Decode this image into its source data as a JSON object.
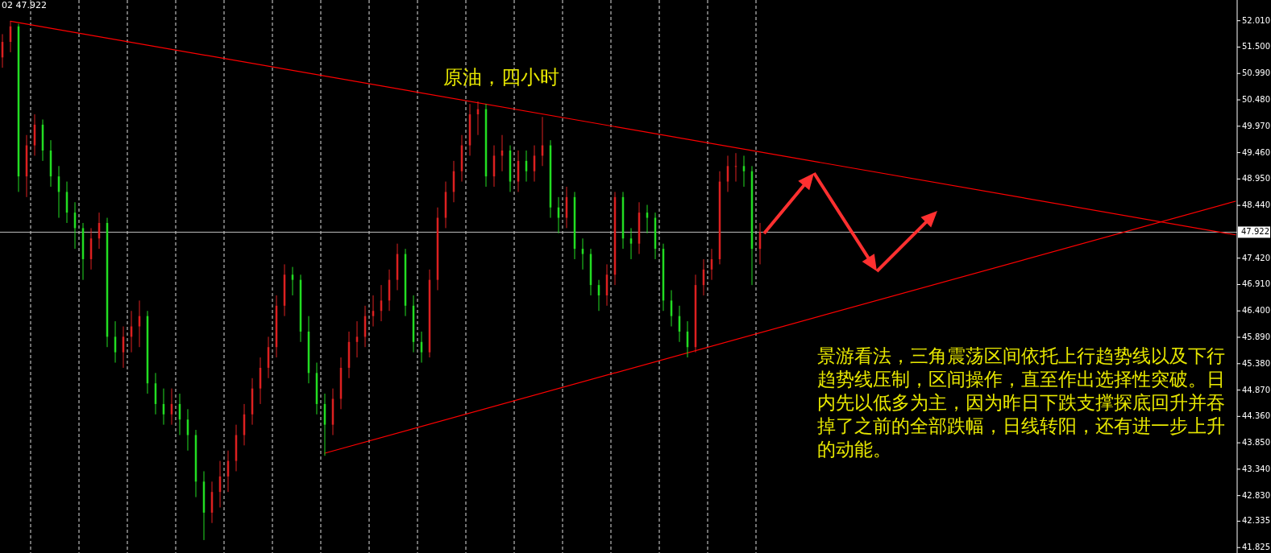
{
  "chart_data": {
    "type": "candlestick",
    "title": "原油，四小时",
    "annotations": [
      "02 47.922",
      "景游看法，三角震荡区间依托上行趋势线以及下行趋势线压制，区间操作，直至作出选择性突破。日内先以低多为主，因为昨日下跌支撑探底回升并吞掉了之前的全部跌幅，日线转阳，还有进一步上升的动能。"
    ],
    "categories": [
      null,
      null,
      null,
      null,
      null,
      null,
      null,
      null,
      null,
      null,
      null,
      null,
      null,
      null,
      null,
      null,
      null,
      null,
      null,
      null,
      null,
      null,
      null,
      null,
      null,
      null,
      null,
      null,
      null,
      null,
      null,
      null,
      null,
      null,
      null,
      null,
      null,
      null,
      null,
      null,
      null,
      null,
      null,
      null,
      null,
      null,
      null,
      null,
      null,
      null,
      null,
      null,
      null,
      null,
      null,
      null,
      null,
      null,
      null,
      null,
      null,
      null,
      null,
      null,
      null,
      null,
      null,
      null,
      null,
      null,
      null,
      null,
      null,
      null,
      null,
      null,
      null,
      null,
      null,
      null,
      null,
      null,
      null,
      null,
      null,
      null,
      null,
      null,
      null,
      null,
      null,
      null,
      null,
      null,
      null,
      null,
      null,
      null,
      null,
      null,
      null,
      null,
      null,
      null,
      null,
      null,
      null,
      null,
      null,
      null,
      null,
      null,
      null,
      null,
      null,
      null,
      null,
      null,
      null,
      null,
      null,
      null,
      null,
      null,
      null,
      null,
      null,
      null,
      null,
      null,
      null,
      null,
      null,
      null,
      null,
      null,
      null,
      null,
      null,
      null,
      null,
      null,
      null,
      null,
      null,
      null,
      null,
      null,
      null,
      null,
      null,
      null,
      null,
      null
    ],
    "ohlc": [
      [
        51.3,
        51.75,
        51.1,
        51.6
      ],
      [
        51.6,
        52.0,
        51.4,
        51.9
      ],
      [
        51.9,
        51.95,
        48.7,
        49.0
      ],
      [
        49.0,
        49.8,
        48.6,
        49.6
      ],
      [
        49.6,
        50.2,
        49.4,
        50.0
      ],
      [
        50.0,
        50.1,
        49.3,
        49.5
      ],
      [
        49.5,
        49.7,
        48.8,
        49.0
      ],
      [
        49.0,
        49.2,
        48.2,
        48.7
      ],
      [
        48.7,
        48.9,
        48.1,
        48.3
      ],
      [
        48.3,
        48.5,
        47.6,
        48.0
      ],
      [
        48.0,
        48.1,
        47.0,
        47.4
      ],
      [
        47.4,
        48.0,
        47.2,
        47.8
      ],
      [
        47.8,
        48.3,
        47.6,
        48.1
      ],
      [
        48.1,
        48.2,
        45.7,
        45.9
      ],
      [
        45.9,
        46.2,
        45.4,
        45.6
      ],
      [
        45.6,
        46.1,
        45.3,
        45.9
      ],
      [
        45.9,
        46.4,
        45.6,
        46.1
      ],
      [
        46.1,
        46.6,
        45.7,
        46.3
      ],
      [
        46.3,
        46.4,
        44.8,
        45.0
      ],
      [
        45.0,
        45.2,
        44.4,
        44.6
      ],
      [
        44.6,
        44.9,
        44.2,
        44.4
      ],
      [
        44.4,
        44.9,
        44.2,
        44.6
      ],
      [
        44.6,
        44.8,
        44.0,
        44.3
      ],
      [
        44.3,
        44.5,
        43.7,
        44.0
      ],
      [
        44.0,
        44.1,
        42.8,
        43.1
      ],
      [
        43.1,
        43.3,
        41.97,
        42.5
      ],
      [
        42.5,
        43.1,
        42.3,
        42.9
      ],
      [
        42.9,
        43.5,
        42.6,
        43.2
      ],
      [
        43.2,
        43.7,
        42.9,
        43.5
      ],
      [
        43.5,
        44.2,
        43.3,
        44.0
      ],
      [
        44.0,
        44.6,
        43.8,
        44.4
      ],
      [
        44.4,
        45.1,
        44.2,
        44.9
      ],
      [
        44.9,
        45.5,
        44.6,
        45.3
      ],
      [
        45.3,
        45.9,
        45.1,
        45.7
      ],
      [
        45.7,
        46.7,
        45.5,
        46.5
      ],
      [
        46.5,
        47.3,
        46.3,
        47.1
      ],
      [
        47.1,
        47.25,
        46.7,
        47.0
      ],
      [
        47.0,
        47.1,
        45.8,
        46.0
      ],
      [
        46.0,
        46.3,
        45.0,
        45.2
      ],
      [
        45.2,
        45.4,
        44.4,
        44.6
      ],
      [
        44.6,
        44.8,
        43.6,
        44.2
      ],
      [
        44.2,
        44.9,
        44.0,
        44.7
      ],
      [
        44.7,
        45.5,
        44.5,
        45.3
      ],
      [
        45.3,
        46.0,
        45.1,
        45.8
      ],
      [
        45.8,
        46.2,
        45.5,
        45.9
      ],
      [
        45.9,
        46.5,
        45.7,
        46.3
      ],
      [
        46.3,
        46.7,
        46.1,
        46.4
      ],
      [
        46.4,
        46.9,
        46.2,
        46.6
      ],
      [
        46.6,
        47.2,
        46.4,
        47.0
      ],
      [
        47.0,
        47.7,
        46.8,
        47.5
      ],
      [
        47.5,
        47.6,
        46.3,
        46.5
      ],
      [
        46.5,
        46.7,
        45.6,
        45.8
      ],
      [
        45.8,
        46.0,
        45.4,
        45.6
      ],
      [
        45.6,
        47.2,
        45.5,
        47.0
      ],
      [
        47.0,
        48.4,
        46.8,
        48.2
      ],
      [
        48.2,
        48.9,
        48.0,
        48.7
      ],
      [
        48.7,
        49.3,
        48.5,
        49.1
      ],
      [
        49.1,
        49.8,
        48.9,
        49.6
      ],
      [
        49.6,
        50.4,
        49.4,
        50.2
      ],
      [
        50.2,
        50.45,
        49.8,
        50.3
      ],
      [
        50.3,
        50.4,
        48.8,
        49.0
      ],
      [
        49.0,
        49.6,
        48.8,
        49.4
      ],
      [
        49.4,
        49.8,
        49.1,
        49.5
      ],
      [
        49.5,
        49.6,
        48.7,
        48.9
      ],
      [
        48.9,
        49.5,
        48.7,
        49.3
      ],
      [
        49.3,
        49.5,
        48.9,
        49.1
      ],
      [
        49.1,
        49.6,
        48.9,
        49.4
      ],
      [
        49.4,
        50.15,
        49.2,
        49.6
      ],
      [
        49.6,
        49.7,
        48.2,
        48.4
      ],
      [
        48.4,
        48.6,
        47.9,
        48.2
      ],
      [
        48.2,
        48.8,
        48.0,
        48.6
      ],
      [
        48.6,
        48.7,
        47.4,
        47.6
      ],
      [
        47.6,
        47.8,
        47.2,
        47.5
      ],
      [
        47.5,
        47.6,
        46.7,
        46.9
      ],
      [
        46.9,
        47.0,
        46.4,
        46.7
      ],
      [
        46.7,
        47.3,
        46.5,
        47.1
      ],
      [
        47.1,
        48.7,
        46.9,
        48.6
      ],
      [
        48.6,
        48.7,
        47.6,
        47.8
      ],
      [
        47.8,
        48.0,
        47.4,
        47.7
      ],
      [
        47.7,
        48.5,
        47.5,
        48.3
      ],
      [
        48.3,
        48.45,
        47.9,
        48.2
      ],
      [
        48.2,
        48.3,
        47.4,
        47.6
      ],
      [
        47.6,
        47.7,
        46.4,
        46.6
      ],
      [
        46.6,
        46.8,
        46.1,
        46.3
      ],
      [
        46.3,
        46.5,
        45.8,
        46.0
      ],
      [
        46.0,
        46.2,
        45.5,
        45.7
      ],
      [
        45.7,
        47.1,
        45.6,
        46.9
      ],
      [
        46.9,
        47.4,
        46.7,
        47.2
      ],
      [
        47.2,
        47.6,
        47.0,
        47.4
      ],
      [
        47.4,
        49.1,
        47.3,
        48.9
      ],
      [
        48.9,
        49.4,
        48.7,
        49.2
      ],
      [
        49.2,
        49.45,
        48.9,
        49.2
      ],
      [
        49.2,
        49.4,
        48.8,
        49.1
      ],
      [
        49.1,
        49.2,
        46.9,
        47.6
      ],
      [
        47.6,
        48.1,
        47.3,
        47.922
      ],
      null,
      null,
      null,
      null,
      null,
      null,
      null,
      null,
      null,
      null,
      null,
      null,
      null,
      null,
      null,
      null,
      null,
      null,
      null,
      null,
      null,
      null,
      null,
      null,
      null,
      null,
      null,
      null,
      null,
      null,
      null,
      null,
      null,
      null,
      null,
      null,
      null,
      null,
      null,
      null,
      null,
      null,
      null,
      null,
      null,
      null,
      null,
      null,
      null,
      null,
      null,
      null,
      null,
      null,
      null,
      null,
      null,
      null,
      null
    ],
    "series": [
      {
        "type": "line",
        "color": "#ff0000",
        "values": [
          null,
          52.0,
          null,
          null,
          null,
          null,
          null,
          null,
          null,
          null,
          null,
          null,
          null,
          null,
          null,
          null,
          null,
          null,
          null,
          null,
          null,
          null,
          null,
          null,
          null,
          null,
          null,
          null,
          null,
          null,
          null,
          null,
          null,
          null,
          null,
          null,
          null,
          null,
          null,
          null,
          null,
          null,
          null,
          null,
          null,
          null,
          null,
          null,
          null,
          null,
          null,
          null,
          null,
          null,
          null,
          null,
          null,
          null,
          null,
          null,
          null,
          null,
          null,
          null,
          null,
          null,
          null,
          null,
          null,
          null,
          null,
          null,
          null,
          null,
          null,
          null,
          null,
          null,
          null,
          null,
          null,
          null,
          null,
          null,
          null,
          null,
          null,
          null,
          null,
          null,
          null,
          null,
          null,
          null,
          null,
          null,
          null,
          null,
          null,
          null,
          null,
          null,
          null,
          null,
          null,
          null,
          null,
          null,
          null,
          null,
          null,
          null,
          null,
          null,
          null,
          null,
          null,
          null,
          null,
          null,
          null,
          null,
          null,
          null,
          null,
          null,
          null,
          null,
          null,
          null,
          null,
          null,
          null,
          null,
          null,
          null,
          null,
          null,
          null,
          null,
          null,
          null,
          null,
          null,
          null,
          null,
          null,
          null,
          null,
          null,
          null,
          null,
          null,
          47.87
        ]
      },
      {
        "type": "line",
        "color": "#ff0000",
        "values": [
          null,
          null,
          null,
          null,
          null,
          null,
          null,
          null,
          null,
          null,
          null,
          null,
          null,
          null,
          null,
          null,
          null,
          null,
          null,
          null,
          null,
          null,
          null,
          null,
          null,
          null,
          null,
          null,
          null,
          null,
          null,
          null,
          null,
          null,
          null,
          null,
          null,
          null,
          null,
          null,
          43.65,
          null,
          null,
          null,
          null,
          null,
          null,
          null,
          null,
          null,
          null,
          null,
          null,
          null,
          null,
          null,
          null,
          null,
          null,
          null,
          null,
          null,
          null,
          null,
          null,
          null,
          null,
          null,
          null,
          null,
          null,
          null,
          null,
          null,
          null,
          null,
          null,
          null,
          null,
          null,
          null,
          null,
          null,
          null,
          null,
          null,
          null,
          null,
          null,
          null,
          null,
          null,
          null,
          null,
          null,
          null,
          null,
          null,
          null,
          null,
          null,
          null,
          null,
          null,
          null,
          null,
          null,
          null,
          null,
          null,
          null,
          null,
          null,
          null,
          null,
          null,
          null,
          null,
          null,
          null,
          null,
          null,
          null,
          null,
          null,
          null,
          null,
          null,
          null,
          null,
          null,
          null,
          null,
          null,
          null,
          null,
          null,
          null,
          null,
          null,
          null,
          null,
          null,
          null,
          null,
          null,
          null,
          null,
          null,
          null,
          null,
          null,
          null,
          48.52
        ]
      }
    ],
    "ref_lines": [
      {
        "axis": "y",
        "value": 47.922,
        "label": "47.922",
        "color": "#c0c0c0"
      }
    ],
    "ylim": [
      41.72,
      52.41
    ],
    "yticks": [
      {
        "value": 52.01,
        "label": "52.010"
      },
      {
        "value": 51.5,
        "label": "51.500"
      },
      {
        "value": 50.99,
        "label": "50.990"
      },
      {
        "value": 50.48,
        "label": "50.480"
      },
      {
        "value": 49.97,
        "label": "49.970"
      },
      {
        "value": 49.46,
        "label": "49.460"
      },
      {
        "value": 48.95,
        "label": "48.950"
      },
      {
        "value": 48.44,
        "label": "48.440"
      },
      {
        "value": 47.42,
        "label": "47.420"
      },
      {
        "value": 46.91,
        "label": "46.910"
      },
      {
        "value": 46.4,
        "label": "46.400"
      },
      {
        "value": 45.89,
        "label": "45.890"
      },
      {
        "value": 45.38,
        "label": "45.380"
      },
      {
        "value": 44.87,
        "label": "44.870"
      },
      {
        "value": 44.36,
        "label": "44.360"
      },
      {
        "value": 43.85,
        "label": "43.850"
      },
      {
        "value": 43.34,
        "label": "43.340"
      },
      {
        "value": 42.83,
        "label": "42.830"
      },
      {
        "value": 42.335,
        "label": "42.335"
      },
      {
        "value": 41.825,
        "label": "41.825"
      }
    ],
    "grid": "x"
  }
}
